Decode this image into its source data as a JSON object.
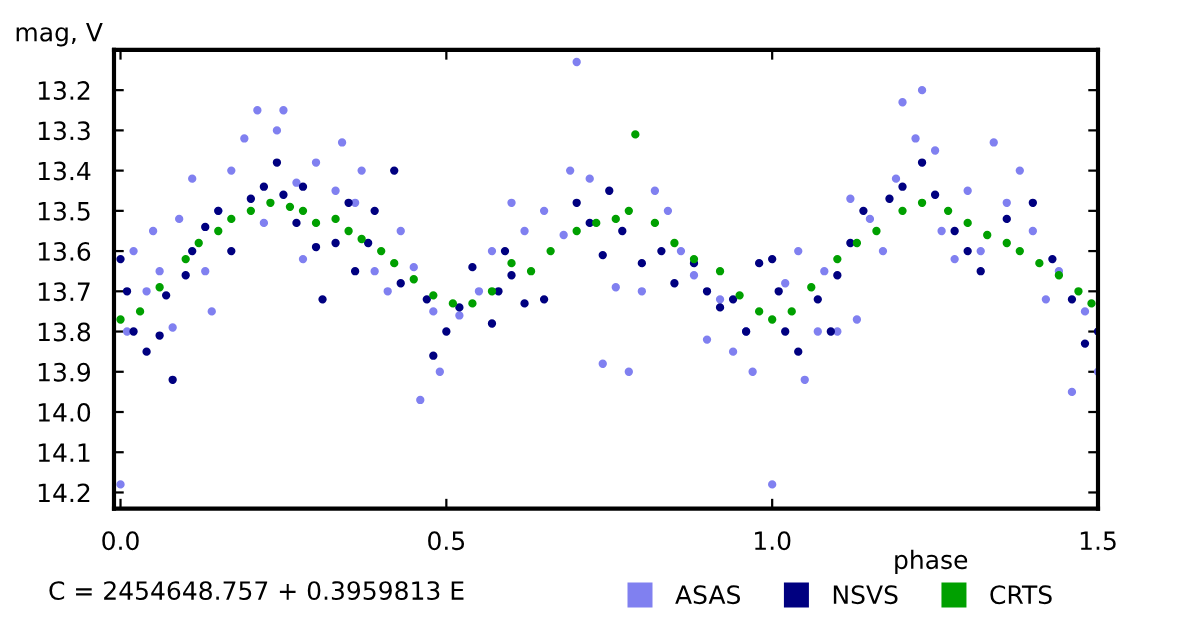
{
  "chart_data": {
    "type": "scatter",
    "xlabel": "phase",
    "ylabel": "mag, V",
    "annotations": [
      "C = 2454648.757 + 0.3959813 E"
    ],
    "xlim": [
      -0.01,
      1.5
    ],
    "xticks": [
      {
        "value": 0,
        "label": "0.0"
      },
      0.5,
      {
        "value": 1,
        "label": "1.0"
      },
      1.5
    ],
    "ylim": [
      14.24,
      13.1
    ],
    "yticks": [
      13.2,
      13.3,
      13.4,
      13.5,
      13.6,
      13.7,
      13.8,
      13.9,
      {
        "value": 14,
        "label": "14.0"
      },
      14.1,
      14.2
    ],
    "grid": false,
    "legend": "bottom",
    "marker": "circle",
    "series": [
      {
        "name": "ASAS",
        "color": "#8080f0",
        "x": [
          0.0,
          0.01,
          0.02,
          0.04,
          0.05,
          0.06,
          0.08,
          0.09,
          0.11,
          0.13,
          0.14,
          0.15,
          0.17,
          0.19,
          0.21,
          0.22,
          0.24,
          0.25,
          0.27,
          0.28,
          0.3,
          0.33,
          0.34,
          0.36,
          0.37,
          0.39,
          0.41,
          0.43,
          0.45,
          0.46,
          0.48,
          0.49,
          0.52,
          0.55,
          0.57,
          0.6,
          0.62,
          0.65,
          0.68,
          0.69,
          0.7,
          0.72,
          0.74,
          0.76,
          0.78,
          0.8,
          0.82,
          0.84,
          0.86,
          0.88,
          0.9,
          0.92,
          0.94,
          0.96,
          0.97,
          1.0,
          1.02,
          1.04,
          1.05,
          1.07,
          1.08,
          1.1,
          1.12,
          1.13,
          1.15,
          1.17,
          1.19,
          1.2,
          1.22,
          1.23,
          1.25,
          1.26,
          1.28,
          1.3,
          1.32,
          1.34,
          1.36,
          1.38,
          1.4,
          1.42,
          1.44,
          1.46,
          1.48,
          1.5
        ],
        "values": [
          14.18,
          13.8,
          13.6,
          13.7,
          13.55,
          13.65,
          13.79,
          13.52,
          13.42,
          13.65,
          13.75,
          13.5,
          13.4,
          13.32,
          13.25,
          13.53,
          13.3,
          13.25,
          13.43,
          13.62,
          13.38,
          13.45,
          13.33,
          13.48,
          13.4,
          13.65,
          13.7,
          13.55,
          13.64,
          13.97,
          13.75,
          13.9,
          13.76,
          13.7,
          13.6,
          13.48,
          13.55,
          13.5,
          13.56,
          13.4,
          13.13,
          13.42,
          13.88,
          13.69,
          13.9,
          13.7,
          13.45,
          13.5,
          13.6,
          13.66,
          13.82,
          13.72,
          13.85,
          13.8,
          13.9,
          14.18,
          13.68,
          13.6,
          13.92,
          13.8,
          13.65,
          13.8,
          13.47,
          13.77,
          13.52,
          13.6,
          13.42,
          13.23,
          13.32,
          13.2,
          13.35,
          13.55,
          13.62,
          13.45,
          13.6,
          13.33,
          13.48,
          13.4,
          13.55,
          13.72,
          13.65,
          13.95,
          13.75,
          13.9
        ]
      },
      {
        "name": "NSVS",
        "color": "#000080",
        "x": [
          0.0,
          0.01,
          0.02,
          0.04,
          0.06,
          0.07,
          0.08,
          0.1,
          0.11,
          0.13,
          0.15,
          0.17,
          0.2,
          0.22,
          0.24,
          0.25,
          0.27,
          0.28,
          0.3,
          0.31,
          0.33,
          0.35,
          0.36,
          0.38,
          0.39,
          0.42,
          0.43,
          0.47,
          0.48,
          0.5,
          0.52,
          0.54,
          0.57,
          0.58,
          0.59,
          0.6,
          0.62,
          0.65,
          0.7,
          0.72,
          0.74,
          0.75,
          0.77,
          0.8,
          0.83,
          0.85,
          0.88,
          0.9,
          0.92,
          0.94,
          0.96,
          0.98,
          1.0,
          1.01,
          1.02,
          1.04,
          1.07,
          1.09,
          1.1,
          1.12,
          1.14,
          1.18,
          1.2,
          1.23,
          1.25,
          1.28,
          1.3,
          1.32,
          1.36,
          1.4,
          1.43,
          1.46,
          1.48,
          1.5
        ],
        "values": [
          13.62,
          13.7,
          13.8,
          13.85,
          13.81,
          13.71,
          13.92,
          13.66,
          13.6,
          13.54,
          13.5,
          13.6,
          13.47,
          13.44,
          13.38,
          13.46,
          13.53,
          13.44,
          13.59,
          13.72,
          13.58,
          13.48,
          13.65,
          13.58,
          13.5,
          13.4,
          13.68,
          13.72,
          13.86,
          13.8,
          13.74,
          13.64,
          13.78,
          13.7,
          13.6,
          13.66,
          13.73,
          13.72,
          13.48,
          13.53,
          13.61,
          13.45,
          13.55,
          13.63,
          13.6,
          13.68,
          13.63,
          13.7,
          13.74,
          13.72,
          13.8,
          13.63,
          13.62,
          13.7,
          13.8,
          13.85,
          13.72,
          13.8,
          13.66,
          13.58,
          13.5,
          13.47,
          13.44,
          13.38,
          13.46,
          13.55,
          13.6,
          13.65,
          13.52,
          13.48,
          13.62,
          13.72,
          13.83,
          13.8
        ]
      },
      {
        "name": "CRTS",
        "color": "#00a000",
        "x": [
          0.0,
          0.03,
          0.06,
          0.1,
          0.12,
          0.15,
          0.17,
          0.2,
          0.23,
          0.26,
          0.28,
          0.3,
          0.33,
          0.35,
          0.37,
          0.4,
          0.42,
          0.45,
          0.48,
          0.51,
          0.54,
          0.57,
          0.6,
          0.63,
          0.66,
          0.7,
          0.73,
          0.76,
          0.78,
          0.79,
          0.82,
          0.85,
          0.88,
          0.92,
          0.95,
          0.98,
          1.0,
          1.03,
          1.06,
          1.1,
          1.13,
          1.16,
          1.2,
          1.23,
          1.27,
          1.3,
          1.33,
          1.36,
          1.38,
          1.41,
          1.44,
          1.47,
          1.49
        ],
        "values": [
          13.77,
          13.75,
          13.69,
          13.62,
          13.58,
          13.55,
          13.52,
          13.5,
          13.48,
          13.49,
          13.5,
          13.53,
          13.52,
          13.55,
          13.57,
          13.6,
          13.63,
          13.67,
          13.71,
          13.73,
          13.73,
          13.7,
          13.63,
          13.65,
          13.6,
          13.55,
          13.53,
          13.52,
          13.5,
          13.31,
          13.53,
          13.58,
          13.62,
          13.65,
          13.71,
          13.75,
          13.77,
          13.75,
          13.69,
          13.62,
          13.58,
          13.55,
          13.5,
          13.48,
          13.5,
          13.53,
          13.56,
          13.58,
          13.6,
          13.63,
          13.66,
          13.7,
          13.73
        ]
      }
    ]
  }
}
